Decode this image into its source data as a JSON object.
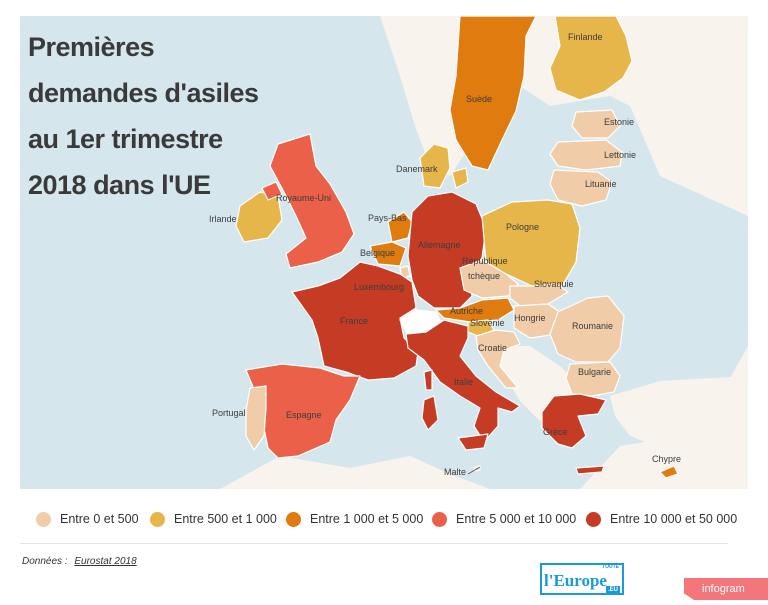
{
  "title": {
    "lines": [
      "Premières",
      "demandes d'asiles",
      "au 1er trimestre",
      "2018 dans l'UE"
    ]
  },
  "colors": {
    "sea": "#d5e7ec",
    "land_other": "#f8f3ec",
    "switzerland": "#ffffff",
    "cat1": "#f1cca8",
    "cat2": "#e6b64b",
    "cat3": "#e07b10",
    "cat4": "#ea6048",
    "cat5": "#c63b24"
  },
  "legend": [
    {
      "label": "Entre 0 et 500",
      "color": "#f1cca8"
    },
    {
      "label": "Entre 500 et 1 000",
      "color": "#e6b64b"
    },
    {
      "label": "Entre 1 000 et 5 000",
      "color": "#e07b10"
    },
    {
      "label": "Entre 5 000 et 10 000",
      "color": "#ea6048"
    },
    {
      "label": "Entre 10 000 et 50 000",
      "color": "#c63b24"
    }
  ],
  "countries": {
    "finlande": {
      "label": "Finlande",
      "category": "Entre 500 et 1 000"
    },
    "suede": {
      "label": "Suède",
      "category": "Entre 1 000 et 5 000"
    },
    "estonie": {
      "label": "Estonie",
      "category": "Entre 0 et 500"
    },
    "lettonie": {
      "label": "Lettonie",
      "category": "Entre 0 et 500"
    },
    "lituanie": {
      "label": "Lituanie",
      "category": "Entre 0 et 500"
    },
    "danemark": {
      "label": "Danemark",
      "category": "Entre 500 et 1 000"
    },
    "irlande": {
      "label": "Irlande",
      "category": "Entre 500 et 1 000"
    },
    "royaume_uni": {
      "label": "Royaume-Uni",
      "category": "Entre 5 000 et 10 000"
    },
    "pays_bas": {
      "label": "Pays-Bas",
      "category": "Entre 1 000 et 5 000"
    },
    "belgique": {
      "label": "Belgique",
      "category": "Entre 1 000 et 5 000"
    },
    "luxembourg": {
      "label": "Luxembourg",
      "category": "Entre 0 et 500"
    },
    "allemagne": {
      "label": "Allemagne",
      "category": "Entre 10 000 et 50 000"
    },
    "pologne": {
      "label": "Pologne",
      "category": "Entre 500 et 1 000"
    },
    "republique_tcheque": {
      "label_line1": "République",
      "label_line2": "tchèque",
      "category": "Entre 0 et 500"
    },
    "slovaquie": {
      "label": "Slovaquie",
      "category": "Entre 0 et 500"
    },
    "autriche": {
      "label": "Autriche",
      "category": "Entre 1 000 et 5 000"
    },
    "hongrie": {
      "label": "Hongrie",
      "category": "Entre 0 et 500"
    },
    "slovenie": {
      "label": "Slovénie",
      "category": "Entre 500 et 1 000"
    },
    "croatie": {
      "label": "Croatie",
      "category": "Entre 0 et 500"
    },
    "roumanie": {
      "label": "Roumanie",
      "category": "Entre 0 et 500"
    },
    "bulgarie": {
      "label": "Bulgarie",
      "category": "Entre 0 et 500"
    },
    "france": {
      "label": "France",
      "category": "Entre 10 000 et 50 000"
    },
    "italie": {
      "label": "Italie",
      "category": "Entre 10 000 et 50 000"
    },
    "espagne": {
      "label": "Espagne",
      "category": "Entre 5 000 et 10 000"
    },
    "portugal": {
      "label": "Portugal",
      "category": "Entre 0 et 500"
    },
    "grece": {
      "label": "Grèce",
      "category": "Entre 10 000 et 50 000"
    },
    "malte": {
      "label": "Malte",
      "category": "Entre 0 et 500"
    },
    "chypre": {
      "label": "Chypre",
      "category": "Entre 1 000 et 5 000"
    }
  },
  "source": {
    "prefix": "Données :",
    "link": "Eurostat 2018"
  },
  "logo": {
    "top": "TOUTE",
    "main": "l'Europe",
    "suffix": ".EU"
  },
  "badge": "infogram"
}
